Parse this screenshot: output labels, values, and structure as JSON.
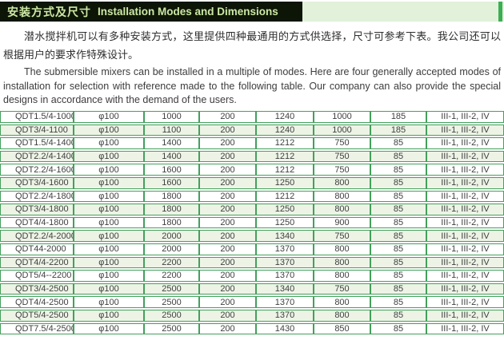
{
  "header": {
    "title_zh": "安装方式及尺寸",
    "title_en": "Installation Modes and Dimensions"
  },
  "intro": {
    "zh": "潜水搅拌机可以有多种安装方式，这里提供四种最通用的方式供选择，尺寸可参考下表。我公司还可以根据用户的要求作特殊设计。",
    "en": "The submersible mixers can be installed in a multiple of modes. Here are four generally accepted modes of installation for selection with reference made to the following table. Our company can also provide the special designs in accordance with the demand of the users."
  },
  "table": {
    "rows": [
      [
        "QDT1.5/4-1000",
        "φ100",
        "1000",
        "200",
        "1240",
        "1000",
        "185",
        "III-1, III-2, IV"
      ],
      [
        "QDT3/4-1100",
        "φ100",
        "1100",
        "200",
        "1240",
        "1000",
        "185",
        "III-1, III-2, IV"
      ],
      [
        "QDT1.5/4-1400",
        "φ100",
        "1400",
        "200",
        "1212",
        "750",
        "85",
        "III-1, III-2, IV"
      ],
      [
        "QDT2.2/4-1400",
        "φ100",
        "1400",
        "200",
        "1212",
        "750",
        "85",
        "III-1, III-2, IV"
      ],
      [
        "QDT2.2/4-1600",
        "φ100",
        "1600",
        "200",
        "1212",
        "750",
        "85",
        "III-1, III-2, IV"
      ],
      [
        "QDT3/4-1600",
        "φ100",
        "1600",
        "200",
        "1250",
        "800",
        "85",
        "III-1, III-2, IV"
      ],
      [
        "QDT2.2/4-1800",
        "φ100",
        "1800",
        "200",
        "1212",
        "800",
        "85",
        "III-1, III-2, IV"
      ],
      [
        "QDT3/4-1800",
        "φ100",
        "1800",
        "200",
        "1250",
        "800",
        "85",
        "III-1, III-2, IV"
      ],
      [
        "QDT4/4-1800",
        "φ100",
        "1800",
        "200",
        "1250",
        "900",
        "85",
        "III-1, III-2, IV"
      ],
      [
        "QDT2.2/4-2000",
        "φ100",
        "2000",
        "200",
        "1340",
        "750",
        "85",
        "III-1, III-2, IV"
      ],
      [
        "QDT44-2000",
        "φ100",
        "2000",
        "200",
        "1370",
        "800",
        "85",
        "III-1, III-2, IV"
      ],
      [
        "QDT4/4-2200",
        "φ100",
        "2200",
        "200",
        "1370",
        "800",
        "85",
        "III-1, III-2, IV"
      ],
      [
        "QDT5/4--2200",
        "φ100",
        "2200",
        "200",
        "1370",
        "800",
        "85",
        "III-1, III-2, IV"
      ],
      [
        "QDT3/4-2500",
        "φ100",
        "2500",
        "200",
        "1340",
        "750",
        "85",
        "III-1, III-2, IV"
      ],
      [
        "QDT4/4-2500",
        "φ100",
        "2500",
        "200",
        "1370",
        "800",
        "85",
        "III-1, III-2, IV"
      ],
      [
        "QDT5/4-2500",
        "φ100",
        "2500",
        "200",
        "1370",
        "800",
        "85",
        "III-1, III-2, IV"
      ],
      [
        "QDT7.5/4-2500",
        "φ100",
        "2500",
        "200",
        "1430",
        "850",
        "85",
        "III-1, III-2, IV"
      ]
    ]
  },
  "colors": {
    "header_band": "#e2f1da",
    "title_bar_bg": "#0d1506",
    "title_text": "#cde9a6",
    "accent_strip": "#3cae53",
    "table_border": "#44a05c",
    "row_tint": "#edf4e6"
  }
}
